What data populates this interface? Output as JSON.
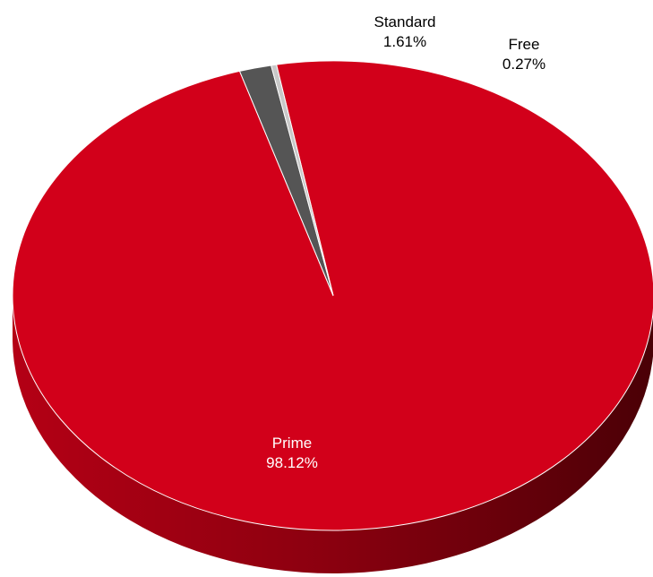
{
  "chart_data": {
    "type": "pie",
    "title": "",
    "categories": [
      "Prime",
      "Standard",
      "Free"
    ],
    "values": [
      98.12,
      1.61,
      0.27
    ],
    "value_labels": [
      "98.12%",
      "1.61%",
      "0.27%"
    ],
    "colors": [
      "#d2001a",
      "#555555",
      "#c8c8c8"
    ],
    "label_colors": [
      "#ffffff",
      "#000000",
      "#000000"
    ],
    "style": "3d",
    "legend": "none"
  }
}
